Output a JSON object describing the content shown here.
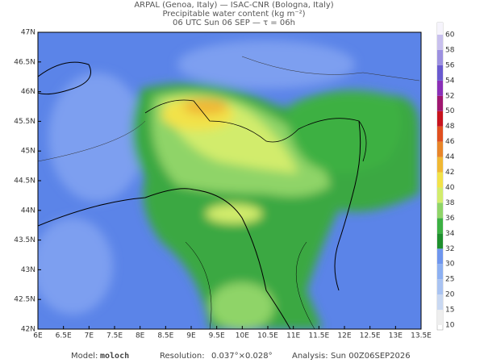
{
  "header": {
    "lines": [
      "ARPAL (Genoa, Italy)  —  ISAC-CNR (Bologna, Italy)",
      "Precipitable water content (kg m⁻²)",
      "06 UTC Sun 06 SEP  —  τ = 06h"
    ]
  },
  "map": {
    "lon_labels": [
      "6E",
      "6.5E",
      "7E",
      "7.5E",
      "8E",
      "8.5E",
      "9E",
      "9.5E",
      "10E",
      "10.5E",
      "11E",
      "11.5E",
      "12E",
      "12.5E",
      "13E",
      "13.5E"
    ],
    "lat_labels": [
      "47N",
      "46.5N",
      "46N",
      "45.5N",
      "45N",
      "44.5N",
      "44N",
      "43.5N",
      "43N",
      "42.5N",
      "42N"
    ]
  },
  "colorbar": {
    "levels": [
      10,
      15,
      20,
      25,
      30,
      32,
      34,
      36,
      38,
      40,
      42,
      44,
      46,
      48,
      50,
      52,
      54,
      56,
      58,
      60
    ],
    "colors": [
      "#eeeeee",
      "#c9d8f2",
      "#a9c3f2",
      "#8db0f2",
      "#6f96ee",
      "#1f8f2e",
      "#3cb043",
      "#8fd468",
      "#d2ec6c",
      "#f2e24a",
      "#f0b834",
      "#e8862a",
      "#e05020",
      "#c8141e",
      "#a01870",
      "#8a30b8",
      "#6a5ad0",
      "#9c90e0",
      "#c8c0ee",
      "#f6f4fc"
    ]
  },
  "footer": {
    "model_label": "Model:",
    "model": "moloch",
    "resolution_label": "Resolution:",
    "resolution": "0.037°×0.028°",
    "analysis_label": "Analysis:",
    "analysis": "Sun 00Z06SEP2026"
  }
}
